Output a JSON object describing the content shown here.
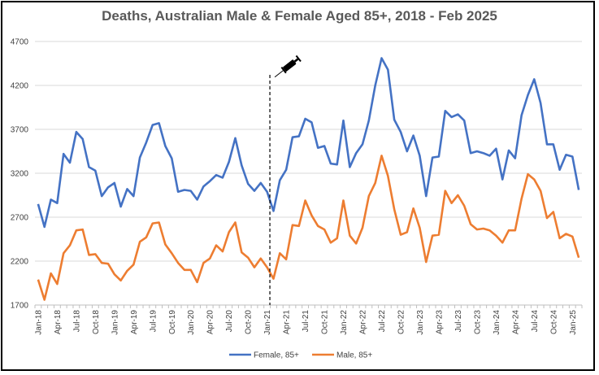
{
  "chart_data": {
    "type": "line",
    "title": "Deaths, Australian Male & Female Aged 85+, 2018 - Feb 2025",
    "xlabel": "",
    "ylabel": "",
    "ylim": [
      1700,
      4700
    ],
    "yticks": [
      1700,
      2200,
      2700,
      3200,
      3700,
      4200,
      4700
    ],
    "grid": true,
    "legend": "bottom",
    "x": [
      "Jan-18",
      "Feb-18",
      "Mar-18",
      "Apr-18",
      "May-18",
      "Jun-18",
      "Jul-18",
      "Aug-18",
      "Sep-18",
      "Oct-18",
      "Nov-18",
      "Dec-18",
      "Jan-19",
      "Feb-19",
      "Mar-19",
      "Apr-19",
      "May-19",
      "Jun-19",
      "Jul-19",
      "Aug-19",
      "Sep-19",
      "Oct-19",
      "Nov-19",
      "Dec-19",
      "Jan-20",
      "Feb-20",
      "Mar-20",
      "Apr-20",
      "May-20",
      "Jun-20",
      "Jul-20",
      "Aug-20",
      "Sep-20",
      "Oct-20",
      "Nov-20",
      "Dec-20",
      "Jan-21",
      "Feb-21",
      "Mar-21",
      "Apr-21",
      "May-21",
      "Jun-21",
      "Jul-21",
      "Aug-21",
      "Sep-21",
      "Oct-21",
      "Nov-21",
      "Dec-21",
      "Jan-22",
      "Feb-22",
      "Mar-22",
      "Apr-22",
      "May-22",
      "Jun-22",
      "Jul-22",
      "Aug-22",
      "Sep-22",
      "Oct-22",
      "Nov-22",
      "Dec-22",
      "Jan-23",
      "Feb-23",
      "Mar-23",
      "Apr-23",
      "May-23",
      "Jun-23",
      "Jul-23",
      "Aug-23",
      "Sep-23",
      "Oct-23",
      "Nov-23",
      "Dec-23",
      "Jan-24",
      "Feb-24",
      "Mar-24",
      "Apr-24",
      "May-24",
      "Jun-24",
      "Jul-24",
      "Aug-24",
      "Sep-24",
      "Oct-24",
      "Nov-24",
      "Dec-24",
      "Jan-25",
      "Feb-25"
    ],
    "series": [
      {
        "name": "Female, 85+",
        "color": "#4472C4",
        "values": [
          2850,
          2590,
          2900,
          2860,
          3420,
          3320,
          3670,
          3590,
          3270,
          3230,
          2940,
          3040,
          3090,
          2820,
          3020,
          2940,
          3380,
          3550,
          3750,
          3770,
          3510,
          3370,
          2990,
          3010,
          3000,
          2900,
          3050,
          3110,
          3180,
          3150,
          3330,
          3600,
          3290,
          3080,
          3000,
          3090,
          2990,
          2770,
          3120,
          3240,
          3610,
          3620,
          3820,
          3780,
          3490,
          3510,
          3310,
          3300,
          3800,
          3270,
          3430,
          3530,
          3800,
          4200,
          4510,
          4380,
          3810,
          3670,
          3450,
          3630,
          3400,
          2940,
          3380,
          3390,
          3910,
          3840,
          3870,
          3800,
          3430,
          3450,
          3430,
          3400,
          3480,
          3130,
          3460,
          3370,
          3860,
          4090,
          4270,
          4000,
          3530,
          3530,
          3240,
          3410,
          3390,
          3010
        ]
      },
      {
        "name": "Male, 85+",
        "color": "#ED7D31",
        "values": [
          1990,
          1760,
          2060,
          1940,
          2290,
          2380,
          2550,
          2560,
          2270,
          2280,
          2180,
          2170,
          2050,
          1980,
          2090,
          2160,
          2420,
          2470,
          2630,
          2640,
          2390,
          2290,
          2180,
          2100,
          2100,
          1960,
          2180,
          2230,
          2380,
          2310,
          2530,
          2640,
          2300,
          2240,
          2130,
          2230,
          2130,
          2000,
          2290,
          2220,
          2610,
          2600,
          2890,
          2720,
          2600,
          2560,
          2410,
          2460,
          2890,
          2490,
          2400,
          2580,
          2940,
          3090,
          3400,
          3170,
          2790,
          2500,
          2530,
          2800,
          2580,
          2190,
          2490,
          2500,
          3000,
          2860,
          2950,
          2830,
          2620,
          2560,
          2570,
          2550,
          2490,
          2410,
          2550,
          2550,
          2910,
          3190,
          3130,
          3000,
          2690,
          2760,
          2460,
          2510,
          2480,
          2240
        ]
      }
    ],
    "annotation": {
      "type": "vertical-dashed-line",
      "at": "Feb-21",
      "icon": "syringe-icon"
    }
  }
}
